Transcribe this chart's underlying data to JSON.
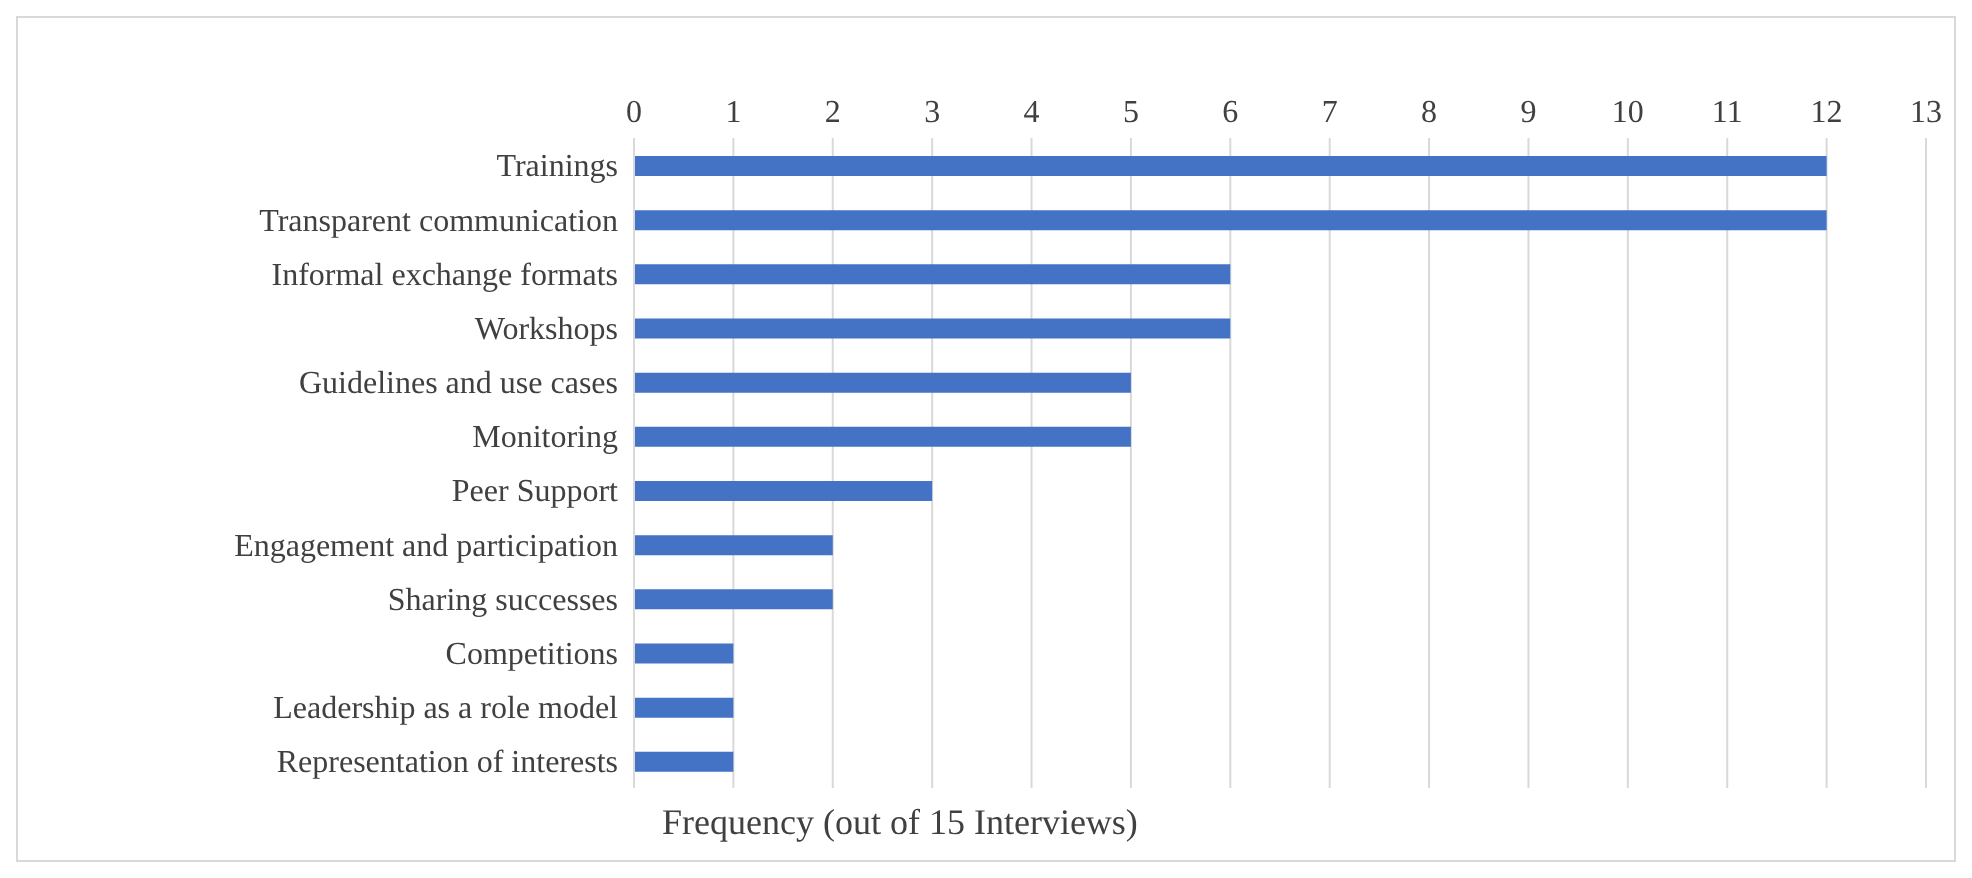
{
  "chart_data": {
    "type": "bar",
    "orientation": "horizontal",
    "xlabel": "Frequency (out of 15 Interviews)",
    "categories": [
      "Trainings",
      "Transparent communication",
      "Informal exchange formats",
      "Workshops",
      "Guidelines and use cases",
      "Monitoring",
      "Peer Support",
      "Engagement and participation",
      "Sharing successes",
      "Competitions",
      "Leadership as a role model",
      "Representation of interests"
    ],
    "values": [
      12,
      12,
      6,
      6,
      5,
      5,
      3,
      2,
      2,
      1,
      1,
      1
    ],
    "color": "#4472c4",
    "xlim": [
      0,
      13
    ],
    "xticks": [
      0,
      1,
      2,
      3,
      4,
      5,
      6,
      7,
      8,
      9,
      10,
      11,
      12,
      13
    ],
    "grid": "x",
    "legend": false
  }
}
